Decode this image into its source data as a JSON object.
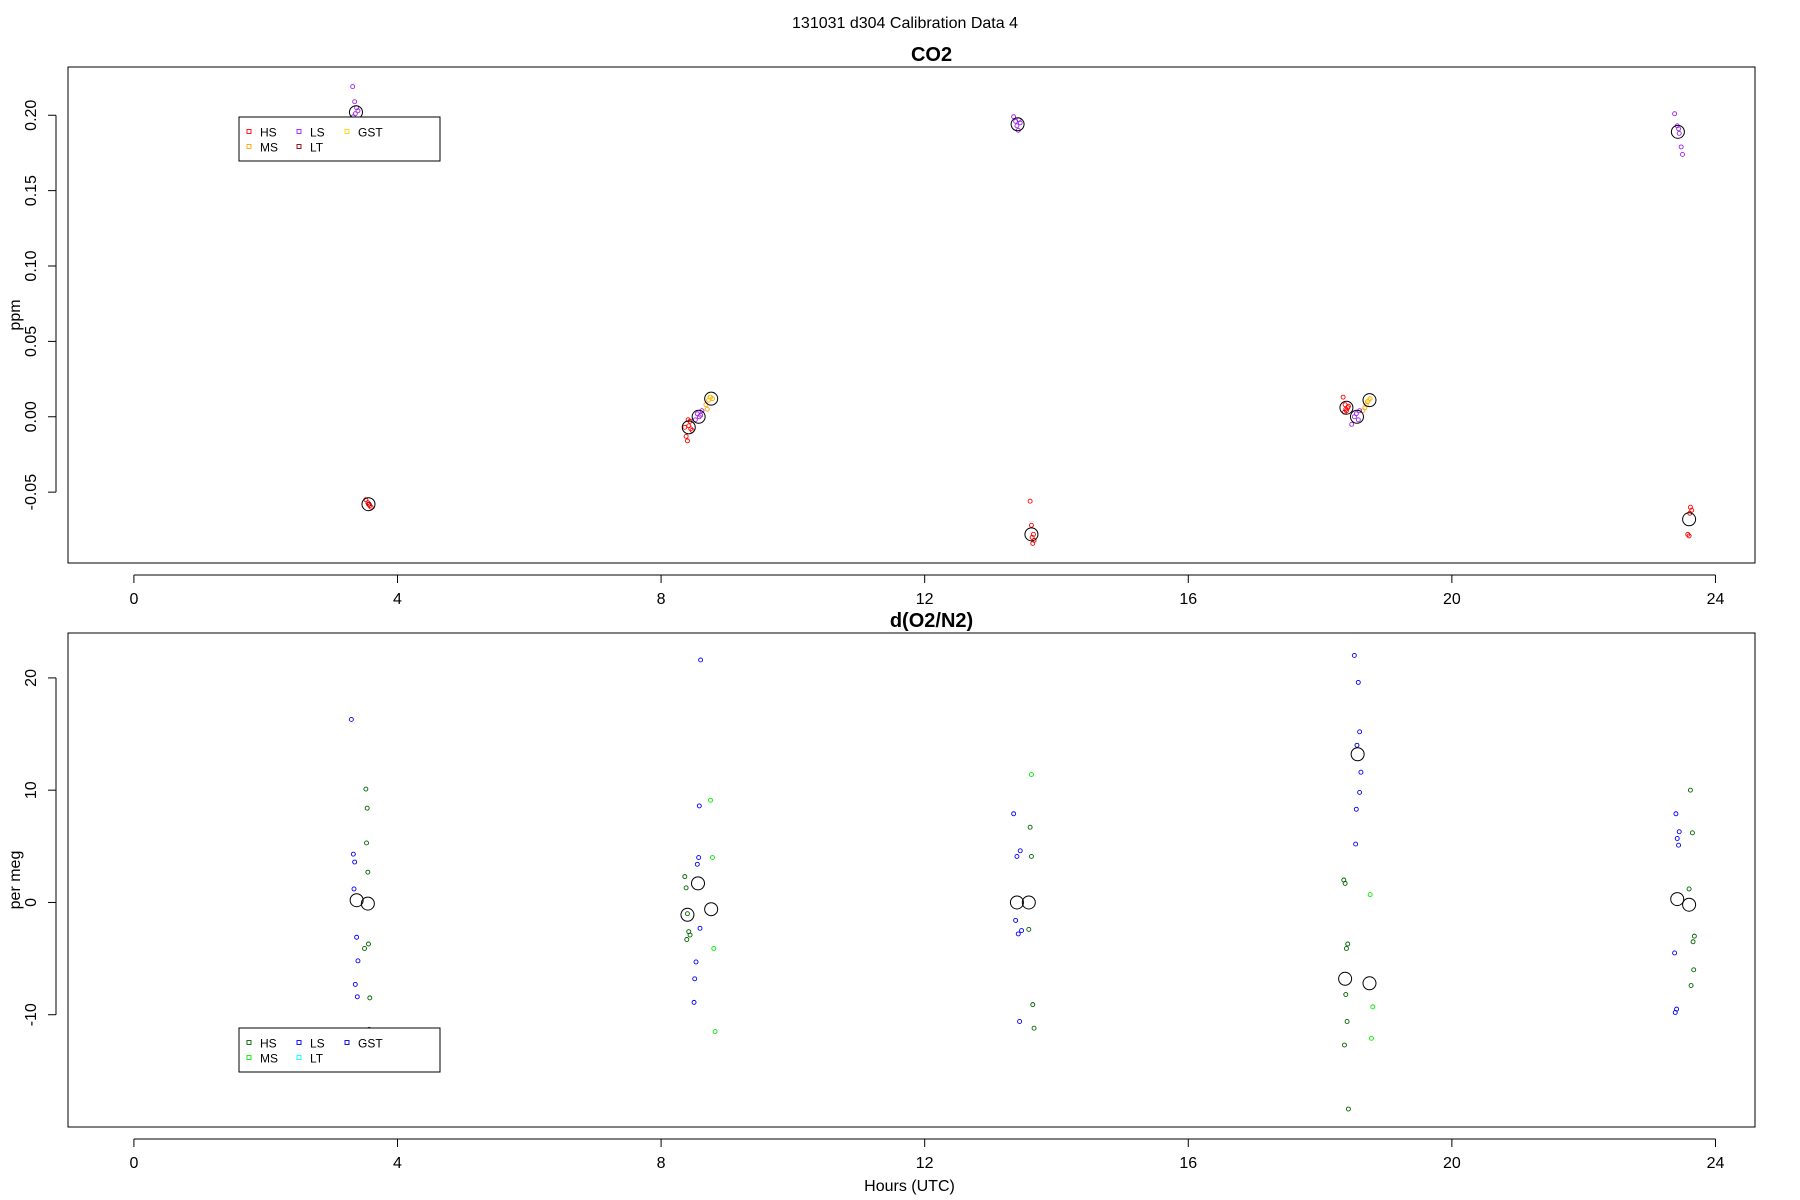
{
  "figure": {
    "title": "131031   d304   Calibration Data 4"
  },
  "chart_data": [
    {
      "type": "scatter",
      "title": "CO2",
      "xlabel": "",
      "ylabel": "ppm",
      "xlim": [
        -1,
        24.6
      ],
      "ylim": [
        -0.097,
        0.232
      ],
      "xticks": [
        "0",
        "4",
        "8",
        "12",
        "16",
        "20",
        "24"
      ],
      "xtick_values": [
        0,
        4,
        8,
        12,
        16,
        20,
        24
      ],
      "yticks": [
        "-0.05",
        "0.00",
        "0.05",
        "0.10",
        "0.15",
        "0.20"
      ],
      "ytick_values": [
        -0.05,
        0,
        0.05,
        0.1,
        0.15,
        0.2
      ],
      "legend": {
        "position": "top-left",
        "entries": [
          {
            "name": "HS",
            "color": "#ff0000"
          },
          {
            "name": "MS",
            "color": "#ffa500"
          },
          {
            "name": "LS",
            "color": "#a020f0"
          },
          {
            "name": "LT",
            "color": "#8b0000"
          },
          {
            "name": "GST",
            "color": "#ffd700"
          }
        ]
      },
      "series": [
        {
          "name": "HS",
          "color": "#ff0000",
          "points": [
            [
              3.55,
              -0.057
            ],
            [
              3.58,
              -0.059
            ],
            [
              3.52,
              -0.055
            ],
            [
              3.6,
              -0.06
            ],
            [
              3.56,
              -0.058
            ],
            [
              8.38,
              -0.013
            ],
            [
              8.4,
              -0.016
            ],
            [
              8.42,
              -0.006
            ],
            [
              8.44,
              -0.003
            ],
            [
              8.47,
              -0.009
            ],
            [
              8.36,
              -0.007
            ],
            [
              8.41,
              -0.002
            ],
            [
              8.45,
              -0.008
            ],
            [
              13.6,
              -0.056
            ],
            [
              13.62,
              -0.072
            ],
            [
              13.64,
              -0.084
            ],
            [
              13.66,
              -0.082
            ],
            [
              13.63,
              -0.08
            ],
            [
              13.65,
              -0.078
            ],
            [
              18.35,
              0.013
            ],
            [
              18.38,
              0.008
            ],
            [
              18.4,
              0.004
            ],
            [
              18.42,
              0.006
            ],
            [
              18.37,
              0.003
            ],
            [
              18.43,
              0.007
            ],
            [
              18.39,
              0.005
            ],
            [
              23.62,
              -0.06
            ],
            [
              23.64,
              -0.062
            ],
            [
              23.58,
              -0.078
            ],
            [
              23.6,
              -0.079
            ],
            [
              23.61,
              -0.064
            ]
          ]
        },
        {
          "name": "MS",
          "color": "#ffa500",
          "points": [
            [
              8.68,
              0.008
            ],
            [
              8.72,
              0.011
            ],
            [
              8.75,
              0.013
            ],
            [
              8.78,
              0.012
            ],
            [
              8.7,
              0.005
            ],
            [
              18.65,
              0.004
            ],
            [
              18.7,
              0.008
            ],
            [
              18.72,
              0.01
            ],
            [
              18.76,
              0.012
            ],
            [
              18.68,
              0.006
            ]
          ]
        },
        {
          "name": "LS",
          "color": "#a020f0",
          "points": [
            [
              3.32,
              0.219
            ],
            [
              3.35,
              0.209
            ],
            [
              3.38,
              0.205
            ],
            [
              3.36,
              0.201
            ],
            [
              3.33,
              0.199
            ],
            [
              3.4,
              0.203
            ],
            [
              8.52,
              -0.002
            ],
            [
              8.55,
              0.002
            ],
            [
              8.58,
              0.0
            ],
            [
              8.62,
              0.004
            ],
            [
              8.6,
              0.001
            ],
            [
              13.35,
              0.199
            ],
            [
              13.38,
              0.196
            ],
            [
              13.4,
              0.193
            ],
            [
              13.42,
              0.19
            ],
            [
              13.45,
              0.195
            ],
            [
              13.43,
              0.197
            ],
            [
              18.48,
              -0.005
            ],
            [
              18.52,
              0.0
            ],
            [
              18.55,
              0.002
            ],
            [
              18.58,
              -0.002
            ],
            [
              18.6,
              0.004
            ],
            [
              23.38,
              0.201
            ],
            [
              23.42,
              0.193
            ],
            [
              23.45,
              0.188
            ],
            [
              23.48,
              0.179
            ],
            [
              23.5,
              0.174
            ],
            [
              23.44,
              0.191
            ]
          ]
        },
        {
          "name": "LT",
          "color": "#8b0000",
          "points": [
            [
              3.57,
              -0.058
            ]
          ]
        },
        {
          "name": "GST",
          "color": "#ffd700",
          "points": [
            [
              8.74,
              0.013
            ],
            [
              18.74,
              0.011
            ]
          ]
        },
        {
          "name": "",
          "color": "#000000",
          "marker": "large",
          "points": [
            [
              3.37,
              0.202
            ],
            [
              3.56,
              -0.058
            ],
            [
              8.42,
              -0.007
            ],
            [
              8.57,
              0.0
            ],
            [
              8.76,
              0.012
            ],
            [
              13.41,
              0.194
            ],
            [
              13.62,
              -0.078
            ],
            [
              18.4,
              0.006
            ],
            [
              18.56,
              0.0
            ],
            [
              18.75,
              0.011
            ],
            [
              23.43,
              0.189
            ],
            [
              23.6,
              -0.068
            ]
          ]
        }
      ]
    },
    {
      "type": "scatter",
      "title": "d(O2/N2)",
      "xlabel": "Hours (UTC)",
      "ylabel": "per meg",
      "xlim": [
        -1,
        24.6
      ],
      "ylim": [
        -20,
        24
      ],
      "xticks": [
        "0",
        "4",
        "8",
        "12",
        "16",
        "20",
        "24"
      ],
      "xtick_values": [
        0,
        4,
        8,
        12,
        16,
        20,
        24
      ],
      "yticks": [
        "-10",
        "0",
        "10",
        "20"
      ],
      "ytick_values": [
        -10,
        0,
        10,
        20
      ],
      "legend": {
        "position": "bottom-left",
        "entries": [
          {
            "name": "HS",
            "color": "#006400"
          },
          {
            "name": "MS",
            "color": "#00ee00"
          },
          {
            "name": "LS",
            "color": "#0000ff"
          },
          {
            "name": "LT",
            "color": "#00ffff"
          },
          {
            "name": "GST",
            "color": "#0000cd"
          }
        ]
      },
      "series": [
        {
          "name": "HS",
          "color": "#006400",
          "points": [
            [
              3.52,
              10.1
            ],
            [
              3.54,
              8.4
            ],
            [
              3.53,
              5.3
            ],
            [
              3.55,
              2.7
            ],
            [
              3.56,
              -3.7
            ],
            [
              3.5,
              -4.1
            ],
            [
              3.58,
              -8.5
            ],
            [
              3.57,
              -11.3
            ],
            [
              8.36,
              2.3
            ],
            [
              8.38,
              1.3
            ],
            [
              8.4,
              -1.0
            ],
            [
              8.42,
              -2.6
            ],
            [
              8.44,
              -2.9
            ],
            [
              8.39,
              -3.3
            ],
            [
              13.6,
              6.7
            ],
            [
              13.62,
              4.1
            ],
            [
              13.58,
              -2.4
            ],
            [
              13.64,
              -9.1
            ],
            [
              13.66,
              -11.2
            ],
            [
              18.36,
              2.0
            ],
            [
              18.38,
              1.7
            ],
            [
              18.42,
              -3.7
            ],
            [
              18.4,
              -4.1
            ],
            [
              18.39,
              -8.2
            ],
            [
              18.41,
              -10.6
            ],
            [
              18.37,
              -12.7
            ],
            [
              18.43,
              -18.4
            ],
            [
              23.62,
              10.0
            ],
            [
              23.65,
              6.2
            ],
            [
              23.6,
              1.2
            ],
            [
              23.68,
              -3.0
            ],
            [
              23.66,
              -3.5
            ],
            [
              23.67,
              -6.0
            ],
            [
              23.63,
              -7.4
            ]
          ]
        },
        {
          "name": "MS",
          "color": "#00ee00",
          "points": [
            [
              8.75,
              9.1
            ],
            [
              8.78,
              4.0
            ],
            [
              8.8,
              -4.1
            ],
            [
              8.82,
              -11.5
            ],
            [
              13.62,
              11.4
            ],
            [
              18.76,
              0.7
            ],
            [
              18.8,
              -9.3
            ],
            [
              18.78,
              -12.1
            ]
          ]
        },
        {
          "name": "LS",
          "color": "#0000ff",
          "points": [
            [
              3.3,
              16.3
            ],
            [
              3.33,
              4.3
            ],
            [
              3.35,
              3.6
            ],
            [
              3.34,
              1.2
            ],
            [
              3.38,
              -3.1
            ],
            [
              3.4,
              -5.2
            ],
            [
              3.36,
              -7.3
            ],
            [
              3.39,
              -8.4
            ],
            [
              8.6,
              21.6
            ],
            [
              8.58,
              8.6
            ],
            [
              8.57,
              4.0
            ],
            [
              8.55,
              3.4
            ],
            [
              8.59,
              -2.3
            ],
            [
              8.53,
              -5.3
            ],
            [
              8.51,
              -6.8
            ],
            [
              8.5,
              -8.9
            ],
            [
              13.35,
              7.9
            ],
            [
              13.4,
              4.1
            ],
            [
              13.45,
              4.6
            ],
            [
              13.38,
              -1.6
            ],
            [
              13.42,
              -2.8
            ],
            [
              13.47,
              -2.5
            ],
            [
              13.44,
              -10.6
            ],
            [
              18.52,
              22.0
            ],
            [
              18.58,
              19.6
            ],
            [
              18.6,
              15.2
            ],
            [
              18.62,
              11.6
            ],
            [
              18.6,
              9.8
            ],
            [
              18.55,
              8.3
            ],
            [
              18.54,
              5.2
            ],
            [
              23.4,
              7.9
            ],
            [
              23.42,
              5.7
            ],
            [
              23.45,
              6.3
            ],
            [
              23.44,
              5.1
            ],
            [
              23.38,
              -4.5
            ],
            [
              23.41,
              -9.5
            ],
            [
              23.39,
              -9.8
            ]
          ]
        },
        {
          "name": "LT",
          "color": "#00ffff",
          "points": []
        },
        {
          "name": "GST",
          "color": "#0000cd",
          "points": [
            [
              18.56,
              14.0
            ]
          ]
        },
        {
          "name": "",
          "color": "#000000",
          "marker": "large",
          "points": [
            [
              3.38,
              0.2
            ],
            [
              3.55,
              -0.1
            ],
            [
              8.4,
              -1.1
            ],
            [
              8.56,
              1.7
            ],
            [
              8.76,
              -0.6
            ],
            [
              13.4,
              0.0
            ],
            [
              13.58,
              0.0
            ],
            [
              18.38,
              -6.8
            ],
            [
              18.57,
              13.2
            ],
            [
              18.75,
              -7.2
            ],
            [
              23.42,
              0.3
            ],
            [
              23.6,
              -0.2
            ]
          ]
        }
      ]
    }
  ]
}
